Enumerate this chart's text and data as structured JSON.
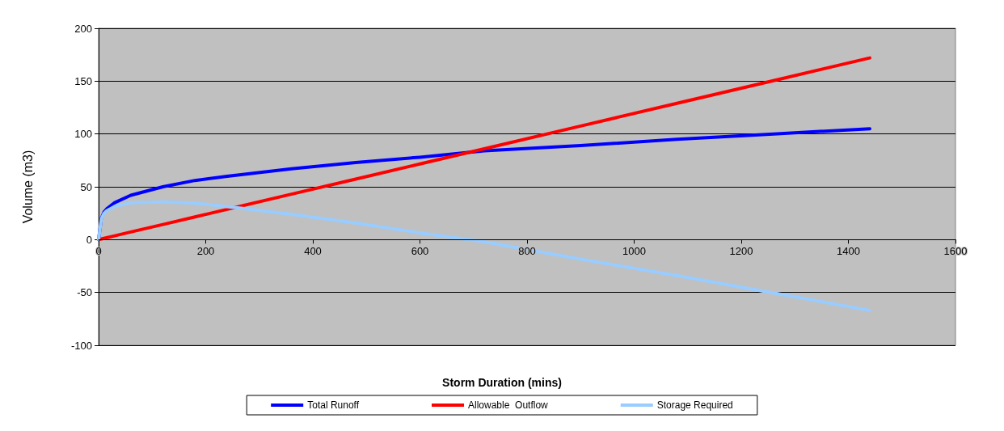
{
  "chart_data": {
    "type": "line",
    "xlabel": "Storm Duration (mins)",
    "ylabel": "Volume (m3)",
    "x": [
      0,
      5,
      10,
      15,
      30,
      60,
      120,
      180,
      240,
      360,
      480,
      600,
      720,
      900,
      1080,
      1260,
      1440
    ],
    "series": [
      {
        "name": "Total Runoff",
        "color": "#0000ff",
        "values": [
          0,
          20,
          26,
          29,
          35,
          42,
          50,
          56,
          60,
          67,
          73,
          78,
          84,
          89,
          95,
          100,
          105
        ]
      },
      {
        "name": "Allowable  Outflow",
        "color": "#ff0000",
        "values": [
          0,
          0.6,
          1.2,
          1.8,
          3.6,
          7.2,
          14.3,
          21.5,
          28.7,
          43,
          57.3,
          71.6,
          86,
          107.5,
          129,
          150.4,
          172
        ]
      },
      {
        "name": "Storage Required",
        "color": "#99ccff",
        "values": [
          0,
          19.4,
          24.8,
          27.2,
          31.4,
          34.8,
          35.7,
          34.5,
          31.3,
          24,
          15.7,
          6.4,
          -2,
          -18.5,
          -34,
          -50.4,
          -67
        ]
      }
    ],
    "xlim": [
      0,
      1600
    ],
    "xticks": [
      0,
      200,
      400,
      600,
      800,
      1000,
      1200,
      1400,
      1600
    ],
    "ylim": [
      -100,
      200
    ],
    "yticks": [
      -100,
      -50,
      0,
      50,
      100,
      150,
      200
    ],
    "grid": "y",
    "legend": "bottom",
    "marker": "none",
    "line_style": "solid"
  }
}
